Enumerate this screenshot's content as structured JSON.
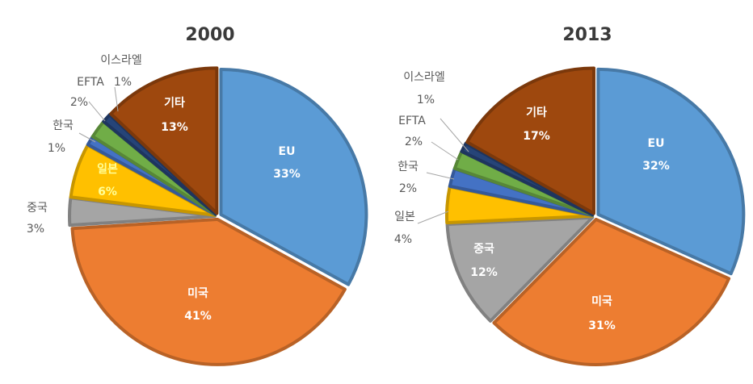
{
  "colors": {
    "EU": "#5B9BD5",
    "미국": "#ED7D31",
    "중국": "#A5A5A5",
    "일본": "#FFC000",
    "한국": "#4472C4",
    "EFTA": "#70AD47",
    "이스라엘": "#264478",
    "기타": "#9E480E",
    "일본_label": "#FFFF99"
  },
  "chart_data": [
    {
      "type": "pie",
      "title": "2000",
      "slices": [
        {
          "name": "EU",
          "value": 33,
          "label": "33%"
        },
        {
          "name": "미국",
          "value": 41,
          "label": "41%"
        },
        {
          "name": "중국",
          "value": 3,
          "label": "3%"
        },
        {
          "name": "일본",
          "value": 6,
          "label": "6%"
        },
        {
          "name": "한국",
          "value": 1,
          "label": "1%"
        },
        {
          "name": "EFTA",
          "value": 2,
          "label": "2%"
        },
        {
          "name": "이스라엘",
          "value": 1,
          "label": "1%"
        },
        {
          "name": "기타",
          "value": 13,
          "label": "13%"
        }
      ]
    },
    {
      "type": "pie",
      "title": "2013",
      "slices": [
        {
          "name": "EU",
          "value": 32,
          "label": "32%"
        },
        {
          "name": "미국",
          "value": 31,
          "label": "31%"
        },
        {
          "name": "중국",
          "value": 12,
          "label": "12%"
        },
        {
          "name": "일본",
          "value": 4,
          "label": "4%"
        },
        {
          "name": "한국",
          "value": 2,
          "label": "2%"
        },
        {
          "name": "EFTA",
          "value": 2,
          "label": "2%"
        },
        {
          "name": "이스라엘",
          "value": 1,
          "label": "1%"
        },
        {
          "name": "기타",
          "value": 17,
          "label": "17%"
        }
      ]
    }
  ]
}
